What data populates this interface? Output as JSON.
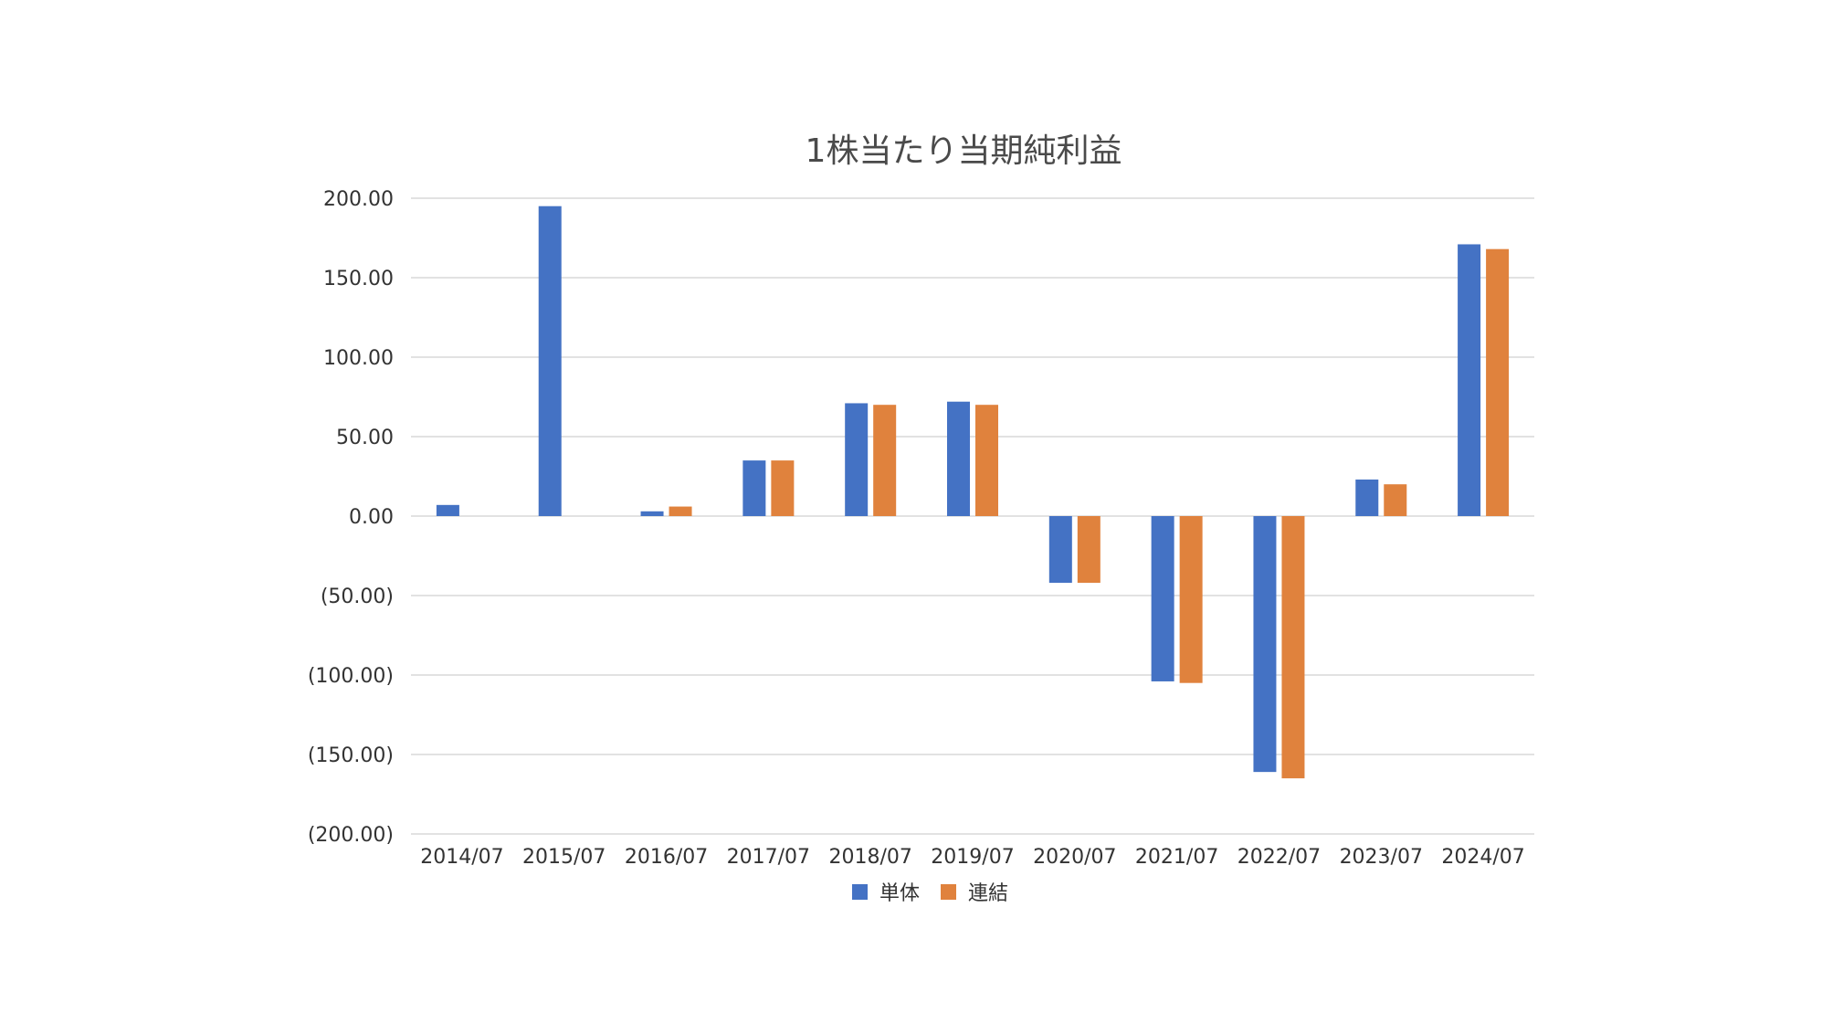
{
  "chart_data": {
    "type": "bar",
    "title": "1株当たり当期純利益",
    "categories": [
      "2014/07",
      "2015/07",
      "2016/07",
      "2017/07",
      "2018/07",
      "2019/07",
      "2020/07",
      "2021/07",
      "2022/07",
      "2023/07",
      "2024/07"
    ],
    "series": [
      {
        "name": "単体",
        "color": "#4472C4",
        "values": [
          7,
          195,
          3,
          35,
          71,
          72,
          -42,
          -104,
          -161,
          23,
          171
        ]
      },
      {
        "name": "連結",
        "color": "#E0823D",
        "values": [
          null,
          null,
          6,
          35,
          70,
          70,
          -42,
          -105,
          -165,
          20,
          168
        ]
      }
    ],
    "ylim": [
      -200,
      200
    ],
    "yticks": [
      200,
      150,
      100,
      50,
      0,
      -50,
      -100,
      -150,
      -200
    ],
    "ytick_labels": [
      "200.00",
      "150.00",
      "100.00",
      "50.00",
      "0.00",
      "(50.00)",
      "(100.00)",
      "(150.00)",
      "(200.00)"
    ],
    "xlabel": "",
    "ylabel": "",
    "grid": true,
    "legend_position": "bottom"
  }
}
